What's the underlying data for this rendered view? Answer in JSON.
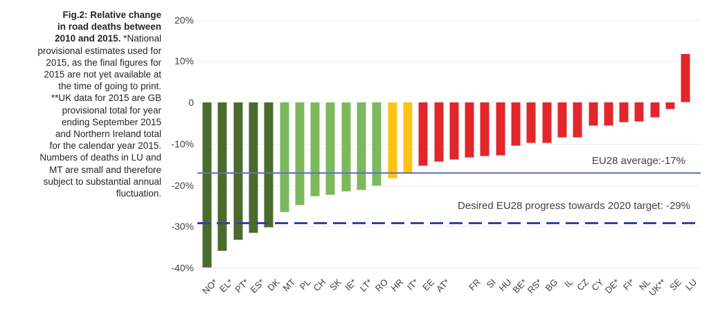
{
  "figure": {
    "caption_lines": [
      [
        {
          "text": "Fig.2: Relative change",
          "bold": true
        }
      ],
      [
        {
          "text": "in road deaths between",
          "bold": true
        }
      ],
      [
        {
          "text": "2010 and 2015.",
          "bold": true
        },
        {
          "text": " *National",
          "bold": false
        }
      ],
      [
        {
          "text": "provisional estimates used for",
          "bold": false
        }
      ],
      [
        {
          "text": "2015, as the final figures for",
          "bold": false
        }
      ],
      [
        {
          "text": "2015 are not yet available at",
          "bold": false
        }
      ],
      [
        {
          "text": "the time of going to print.",
          "bold": false
        }
      ],
      [
        {
          "text": "**UK data for 2015 are GB",
          "bold": false
        }
      ],
      [
        {
          "text": "provisional total for year",
          "bold": false
        }
      ],
      [
        {
          "text": "ending September 2015",
          "bold": false
        }
      ],
      [
        {
          "text": "and Northern Ireland total",
          "bold": false
        }
      ],
      [
        {
          "text": "for the calendar year 2015.",
          "bold": false
        }
      ],
      [
        {
          "text": "Numbers of deaths in LU and",
          "bold": false
        }
      ],
      [
        {
          "text": "MT are small and therefore",
          "bold": false
        }
      ],
      [
        {
          "text": "subject to substantial annual",
          "bold": false
        }
      ],
      [
        {
          "text": "fluctuation.",
          "bold": false
        }
      ]
    ]
  },
  "chart_data": {
    "type": "bar",
    "title": "Fig.2: Relative change in road deaths between 2010 and 2015.",
    "categories": [
      "NO*",
      "EL*",
      "PT*",
      "ES*",
      "DK",
      "MT",
      "PL",
      "CH",
      "SK",
      "IE*",
      "LT*",
      "RO",
      "HR",
      "IT*",
      "EE",
      "AT*",
      "",
      "FR",
      "SI",
      "HU",
      "BE*",
      "RS*",
      "BG",
      "IL",
      "CZ",
      "CY",
      "DE*",
      "FI*",
      "NL",
      "UK**",
      "SE",
      "LU"
    ],
    "values": [
      -40.0,
      -35.9,
      -33.3,
      -31.7,
      -30.3,
      -26.6,
      -24.9,
      -22.7,
      -22.4,
      -21.6,
      -21.3,
      -20.3,
      -18.4,
      -17.0,
      -15.4,
      -14.4,
      -13.8,
      -13.4,
      -13.0,
      -12.8,
      -10.6,
      -9.9,
      -9.8,
      -8.6,
      -8.5,
      -5.7,
      -5.6,
      -4.8,
      -4.7,
      -3.7,
      -1.7,
      11.8
    ],
    "bar_colors": [
      "dark_green",
      "dark_green",
      "dark_green",
      "dark_green",
      "dark_green",
      "light_green",
      "light_green",
      "light_green",
      "light_green",
      "light_green",
      "light_green",
      "light_green",
      "yellow",
      "yellow",
      "red",
      "red",
      "red",
      "red",
      "red",
      "red",
      "red",
      "red",
      "red",
      "red",
      "red",
      "red",
      "red",
      "red",
      "red",
      "red",
      "red",
      "red"
    ],
    "ylim": [
      -40,
      20
    ],
    "grid": true,
    "legend": "none",
    "y_axis": {
      "ticks": [
        {
          "label": "20%",
          "value": 20
        },
        {
          "label": "10%",
          "value": 10
        },
        {
          "label": "0",
          "value": 0
        },
        {
          "label": "-10%",
          "value": -10
        },
        {
          "label": "-20%",
          "value": -20
        },
        {
          "label": "-30%",
          "value": -30
        },
        {
          "label": "-40%",
          "value": -40
        }
      ]
    },
    "avg_line": {
      "value": -17,
      "label": "EU28 average:-17%",
      "style": "solid"
    },
    "target_line": {
      "value": -29,
      "label": "Desired EU28 progress towards 2020 target: -29%",
      "style": "dashed"
    },
    "palette": {
      "dark_green": "#4b6b2d",
      "light_green": "#7cb85e",
      "yellow": "#fcc314",
      "red": "#e2262a",
      "avg_line": "#6670b4",
      "target_line": "#3c3e9e",
      "grid": "#ededed",
      "text": "#414042",
      "caption_text": "#262324"
    }
  }
}
